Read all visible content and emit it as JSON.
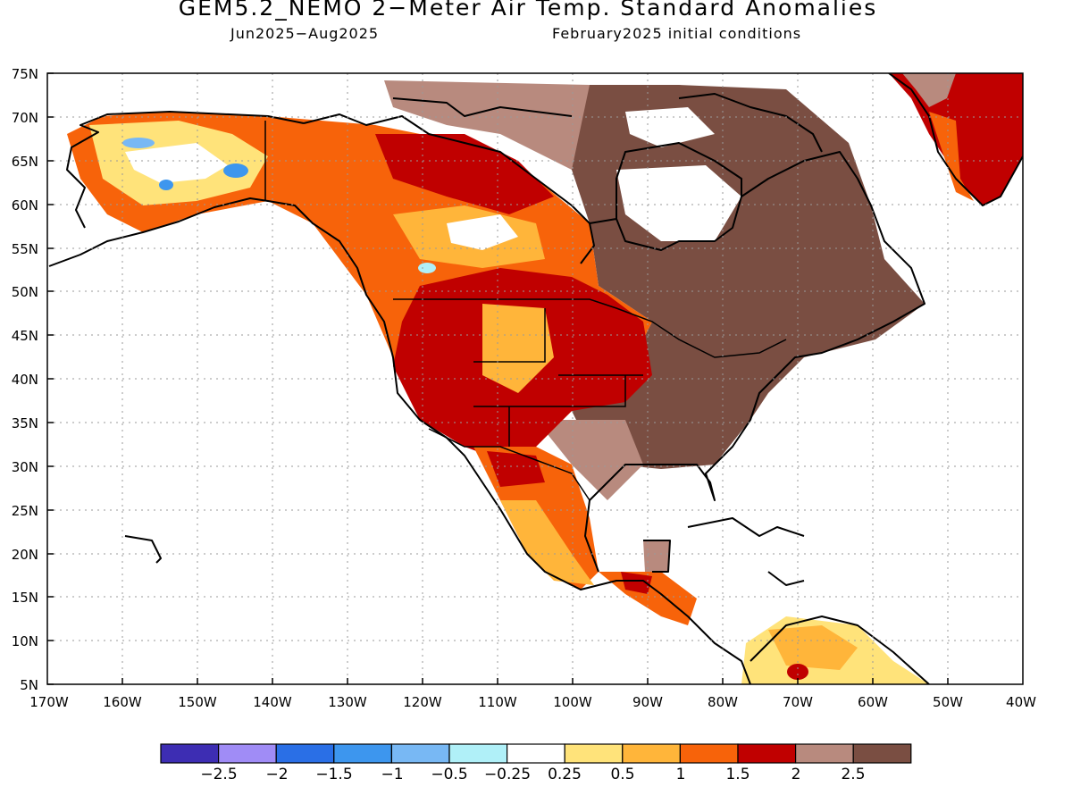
{
  "title": "GEM5.2_NEMO 2−Meter Air Temp. Standard Anomalies",
  "period": "Jun2025−Aug2025",
  "initial_conditions": "February2025 initial conditions",
  "lat_labels": [
    "75N",
    "70N",
    "65N",
    "60N",
    "55N",
    "50N",
    "45N",
    "40N",
    "35N",
    "30N",
    "25N",
    "20N",
    "15N",
    "10N",
    "5N"
  ],
  "lon_labels": [
    "170W",
    "160W",
    "150W",
    "140W",
    "130W",
    "120W",
    "110W",
    "100W",
    "90W",
    "80W",
    "70W",
    "60W",
    "50W",
    "40W"
  ],
  "colorbar": {
    "colors": [
      "#3d2db3",
      "#a08cf6",
      "#2a6fe6",
      "#3d96ee",
      "#78b8f4",
      "#b0f0f8",
      "#ffffff",
      "#ffe37a",
      "#ffb53a",
      "#f7630a",
      "#c00000",
      "#b88a7e",
      "#7a4e42"
    ],
    "labels": [
      "−2.5",
      "−2",
      "−1.5",
      "−1",
      "−0.5",
      "−0.25",
      "0.25",
      "0.5",
      "1",
      "1.5",
      "2",
      "2.5"
    ]
  }
}
